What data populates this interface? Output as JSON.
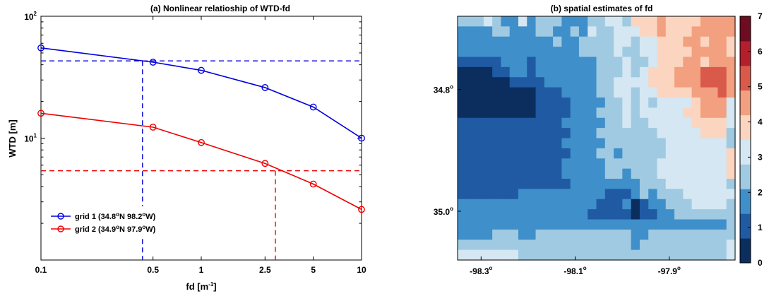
{
  "chart_data": [
    {
      "type": "line",
      "title": "(a) Nonlinear relatioship of WTD-fd",
      "xlabel": "fd [m",
      "xlabel_sup": "-1",
      "xlabel_end": "]",
      "ylabel": "WTD [m]",
      "xscale": "log",
      "yscale": "log",
      "xlim": [
        0.1,
        10
      ],
      "ylim": [
        1,
        100
      ],
      "x_ticks": [
        0.1,
        0.5,
        1,
        2.5,
        5,
        10
      ],
      "x_tick_labels": [
        "0.1",
        "0.5",
        "1",
        "2.5",
        "5",
        "10"
      ],
      "y_ticks": [
        {
          "base": "10",
          "exp": "1",
          "value": 10
        },
        {
          "base": "10",
          "exp": "2",
          "value": 100
        }
      ],
      "x": [
        0.1,
        0.5,
        1,
        2.5,
        5,
        10
      ],
      "legend_position": "bottom-left",
      "series": [
        {
          "name_parts": [
            "grid 1 (34.8",
            "o",
            "N 98.2",
            "o",
            "W)"
          ],
          "color": "#0000dd",
          "values": [
            55,
            42,
            36,
            26,
            18,
            10
          ],
          "ref_x": 0.43,
          "ref_y": 43
        },
        {
          "name_parts": [
            "grid 2 (34.9",
            "o",
            "N 97.9",
            "o",
            "W)"
          ],
          "color": "#ee0000",
          "values": [
            16,
            12.3,
            9.2,
            6.2,
            4.2,
            2.6
          ],
          "ref_x": 2.9,
          "ref_y": 5.4
        }
      ]
    },
    {
      "type": "heatmap",
      "title": "(b) spatial estimates of fd",
      "x_tick_labels": [
        {
          "base": "-98.3",
          "sup": "o"
        },
        {
          "base": "-98.1",
          "sup": "o"
        },
        {
          "base": "-97.9",
          "sup": "o"
        }
      ],
      "x_ticks": [
        -98.3,
        -98.1,
        -97.9
      ],
      "xlim": [
        -98.35,
        -97.76
      ],
      "y_tick_labels": [
        {
          "base": "34.8",
          "sup": "o"
        },
        {
          "base": "35.0",
          "sup": "o"
        }
      ],
      "y_ticks": [
        34.8,
        35.0
      ],
      "ylim_top_to_bottom": [
        34.68,
        35.08
      ],
      "colorbar_range": [
        0,
        7
      ],
      "colorbar_labels": [
        "0",
        "1",
        "2",
        "3",
        "4",
        "5",
        "6",
        "7"
      ],
      "colorbar_colors": [
        "#0b2e5e",
        "#1f5aa3",
        "#3f8fca",
        "#9fcae2",
        "#d4e7f2",
        "#fbd5c0",
        "#f2a07f",
        "#d95a4a",
        "#b41f2e",
        "#6e0c21"
      ],
      "grid_cols": 32,
      "grid_rows": 24,
      "rows": [
        "33343224233322233443555655556666",
        "22223322233223243344455655566666",
        "22222222222322333344344555665665",
        "22222222222222333343344555566665",
        "11111222122222223334334555665666",
        "00001122122222223334345556667776",
        "00000011112222223344445556667776",
        "00000000011122223344344555566676",
        "00000000011112222334343444456664",
        "00000000011112223334344444556664",
        "11111111111122222334334444455554",
        "11111111111112223333333444445553",
        "11111111111122222333333344444443",
        "11111111111112223323333344444445",
        "11111111111122222333333444444445",
        "11111111111122222332333444444445",
        "11111111111112222222233344444443",
        "11111112222222222111232333444444",
        "22222222222222221112012233344443",
        "22222222222222211111011223333333",
        "22222222222222222222222222222223",
        "22223332233333333333223333333333",
        "33333333333333333333233333333334",
        "44444443333333333333333333333334"
      ]
    }
  ]
}
